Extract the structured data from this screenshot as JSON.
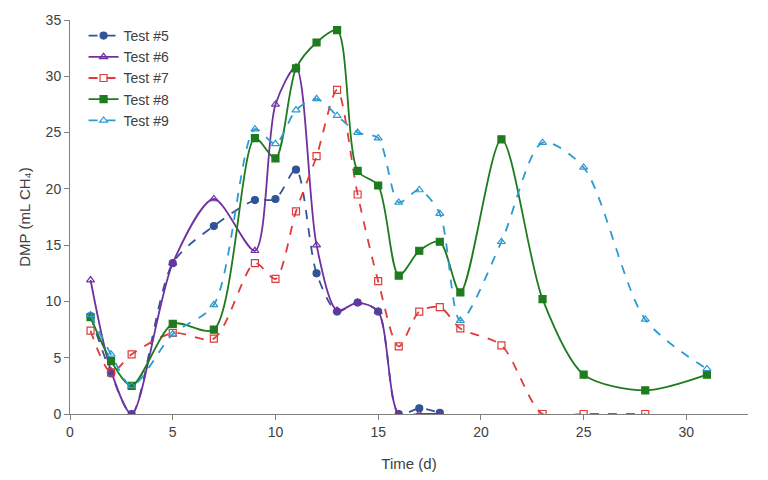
{
  "chart_data": {
    "type": "line",
    "x_label": "Time (d)",
    "y_label": "DMP (mL CH₄)",
    "xlim": [
      0,
      33
    ],
    "xticks": [
      0,
      5,
      10,
      15,
      20,
      25,
      30
    ],
    "ylim": [
      0,
      35
    ],
    "yticks": [
      0,
      5,
      10,
      15,
      20,
      25,
      30,
      35
    ],
    "grid": false,
    "legend": "top-left",
    "series": [
      {
        "name": "Test #5",
        "color": "#2f5597",
        "marker": "circle",
        "line_style": "dash",
        "x": [
          1,
          2,
          3,
          5,
          7,
          9,
          10,
          11,
          12,
          13,
          14,
          15,
          16,
          17,
          18
        ],
        "values": [
          8.7,
          3.6,
          0,
          13.4,
          16.7,
          19,
          19.1,
          21.7,
          12.5,
          9.1,
          9.9,
          9.1,
          0,
          0.5,
          0.1
        ]
      },
      {
        "name": "Test #6",
        "color": "#7030a0",
        "marker": "triangle-up-open",
        "line_style": "solid",
        "x": [
          1,
          2,
          3,
          5,
          7,
          9,
          10,
          11,
          12,
          13,
          14,
          15,
          16,
          17,
          18
        ],
        "values": [
          11.9,
          3.8,
          0,
          13.4,
          19.1,
          14.5,
          27.5,
          30.8,
          15,
          9.2,
          9.9,
          9.1,
          0,
          0,
          0
        ]
      },
      {
        "name": "Test #7",
        "color": "#e03a3a",
        "marker": "square-open",
        "line_style": "dash",
        "x": [
          1,
          2,
          3,
          5,
          7,
          9,
          10,
          11,
          12,
          13,
          14,
          15,
          16,
          17,
          18,
          19,
          21,
          23,
          25,
          28
        ],
        "values": [
          7.4,
          3.7,
          5.3,
          7.2,
          6.7,
          13.4,
          12,
          18,
          22.9,
          28.8,
          19.5,
          11.8,
          6,
          9.1,
          9.5,
          7.6,
          6.1,
          0,
          0,
          0
        ]
      },
      {
        "name": "Test #8",
        "color": "#1e7b1e",
        "marker": "square",
        "line_style": "solid",
        "x": [
          1,
          2,
          3,
          5,
          7,
          9,
          10,
          11,
          12,
          13,
          14,
          15,
          16,
          17,
          18,
          19,
          21,
          23,
          25,
          28,
          31
        ],
        "values": [
          8.6,
          4.7,
          2.5,
          8,
          7.5,
          24.5,
          22.7,
          30.7,
          33,
          34.1,
          21.6,
          20.3,
          12.3,
          14.5,
          15.3,
          10.8,
          24.4,
          10.2,
          3.5,
          2.1,
          3.5
        ]
      },
      {
        "name": "Test #9",
        "color": "#2e9ad0",
        "marker": "triangle-up-open",
        "line_style": "dash",
        "x": [
          1,
          2,
          3,
          5,
          7,
          9,
          10,
          11,
          12,
          13,
          14,
          15,
          16,
          17,
          18,
          19,
          21,
          23,
          25,
          28,
          31
        ],
        "values": [
          8.8,
          5.3,
          2.5,
          7.1,
          9.7,
          25.3,
          24,
          27,
          28,
          26.5,
          25,
          24.5,
          18.8,
          19.9,
          17.8,
          8.3,
          15.3,
          24.1,
          21.9,
          8.4,
          4
        ]
      }
    ]
  }
}
